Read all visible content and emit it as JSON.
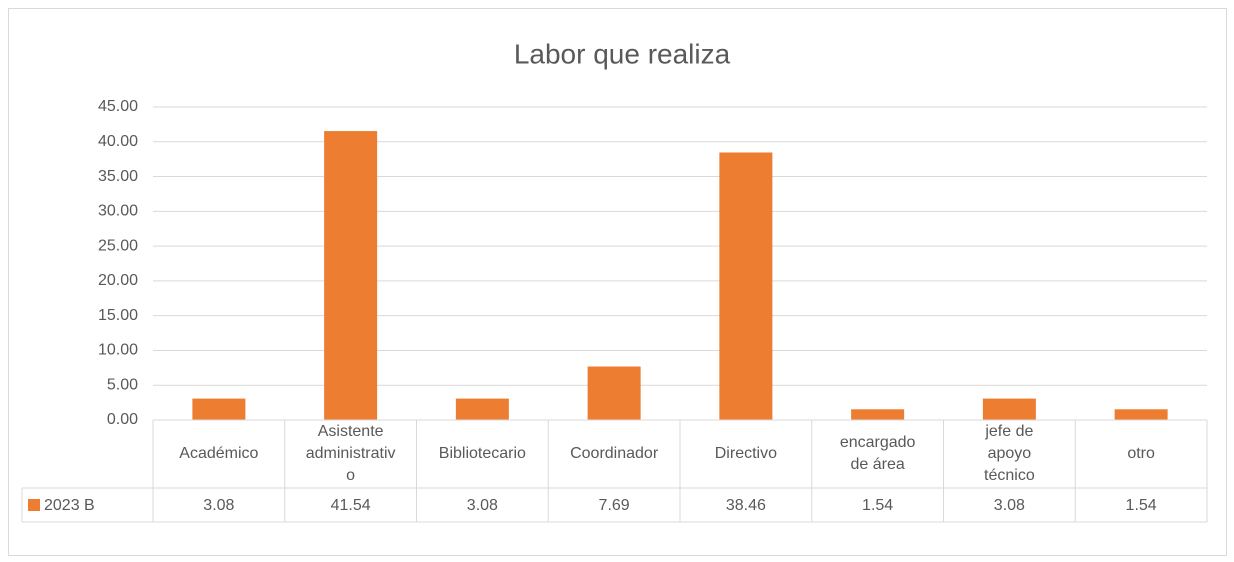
{
  "chart_data": {
    "type": "bar",
    "title": "Labor que realiza",
    "categories": [
      "Académico",
      "Asistente administrativo",
      "Bibliotecario",
      "Coordinador",
      "Directivo",
      "encargado de área",
      "jefe de apoyo técnico",
      "otro"
    ],
    "series": [
      {
        "name": "2023 B",
        "color": "#ed7d31",
        "values": [
          3.08,
          41.54,
          3.08,
          7.69,
          38.46,
          1.54,
          3.08,
          1.54
        ]
      }
    ],
    "ylim": [
      0,
      45
    ],
    "yticks": [
      {
        "value": 0,
        "label": "0.00"
      },
      {
        "value": 5,
        "label": "5.00"
      },
      {
        "value": 10,
        "label": "10.00"
      },
      {
        "value": 15,
        "label": "15.00"
      },
      {
        "value": 20,
        "label": "20.00"
      },
      {
        "value": 25,
        "label": "25.00"
      },
      {
        "value": 30,
        "label": "30.00"
      },
      {
        "value": 35,
        "label": "35.00"
      },
      {
        "value": 40,
        "label": "40.00"
      },
      {
        "value": 45,
        "label": "45.00"
      }
    ],
    "grid": true
  }
}
